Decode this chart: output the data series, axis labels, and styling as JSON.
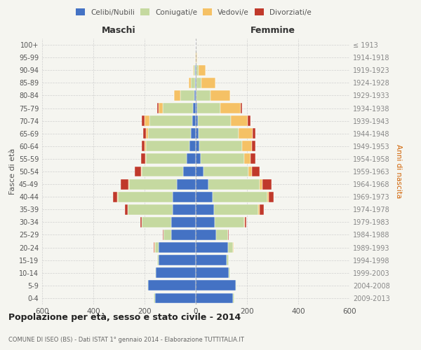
{
  "age_groups": [
    "0-4",
    "5-9",
    "10-14",
    "15-19",
    "20-24",
    "25-29",
    "30-34",
    "35-39",
    "40-44",
    "45-49",
    "50-54",
    "55-59",
    "60-64",
    "65-69",
    "70-74",
    "75-79",
    "80-84",
    "85-89",
    "90-94",
    "95-99",
    "100+"
  ],
  "birth_years": [
    "2009-2013",
    "2004-2008",
    "1999-2003",
    "1994-1998",
    "1989-1993",
    "1984-1988",
    "1979-1983",
    "1974-1978",
    "1969-1973",
    "1964-1968",
    "1959-1963",
    "1954-1958",
    "1949-1953",
    "1944-1948",
    "1939-1943",
    "1934-1938",
    "1929-1933",
    "1924-1928",
    "1919-1923",
    "1914-1918",
    "≤ 1913"
  ],
  "male": {
    "celibi": [
      160,
      185,
      155,
      145,
      145,
      95,
      95,
      90,
      90,
      75,
      50,
      35,
      25,
      20,
      15,
      10,
      5,
      3,
      2,
      0,
      0
    ],
    "coniugati": [
      5,
      5,
      5,
      5,
      15,
      30,
      115,
      175,
      215,
      185,
      160,
      160,
      170,
      165,
      165,
      120,
      55,
      15,
      5,
      1,
      0
    ],
    "vedovi": [
      0,
      0,
      0,
      0,
      2,
      1,
      2,
      2,
      3,
      2,
      3,
      3,
      5,
      10,
      20,
      15,
      25,
      10,
      5,
      1,
      0
    ],
    "divorziati": [
      0,
      0,
      0,
      0,
      2,
      3,
      5,
      10,
      15,
      30,
      25,
      15,
      12,
      10,
      10,
      5,
      0,
      0,
      0,
      0,
      0
    ]
  },
  "female": {
    "nubili": [
      145,
      155,
      130,
      120,
      125,
      80,
      75,
      70,
      65,
      50,
      30,
      20,
      15,
      12,
      8,
      5,
      3,
      2,
      2,
      0,
      0
    ],
    "coniugate": [
      5,
      5,
      5,
      10,
      20,
      45,
      115,
      175,
      215,
      200,
      175,
      170,
      165,
      155,
      130,
      90,
      55,
      20,
      10,
      2,
      0
    ],
    "vedove": [
      0,
      0,
      0,
      0,
      2,
      2,
      3,
      5,
      5,
      10,
      15,
      25,
      40,
      55,
      65,
      80,
      75,
      55,
      25,
      3,
      0
    ],
    "divorziate": [
      0,
      0,
      0,
      0,
      2,
      3,
      5,
      15,
      20,
      35,
      30,
      18,
      12,
      10,
      10,
      5,
      0,
      0,
      0,
      0,
      0
    ]
  },
  "colors": {
    "celibi_nubili": "#4472c4",
    "coniugati": "#c5d9a0",
    "vedovi": "#f5c165",
    "divorziati": "#c0392b"
  },
  "title": "Popolazione per età, sesso e stato civile - 2014",
  "subtitle": "COMUNE DI ISEO (BS) - Dati ISTAT 1° gennaio 2014 - Elaborazione TUTTITALIA.IT",
  "xlabel_left": "Maschi",
  "xlabel_right": "Femmine",
  "ylabel_left": "Fasce di età",
  "ylabel_right": "Anni di nascita",
  "xmin": -600,
  "xmax": 600,
  "background_color": "#f5f5f0",
  "grid_color": "#cccccc"
}
